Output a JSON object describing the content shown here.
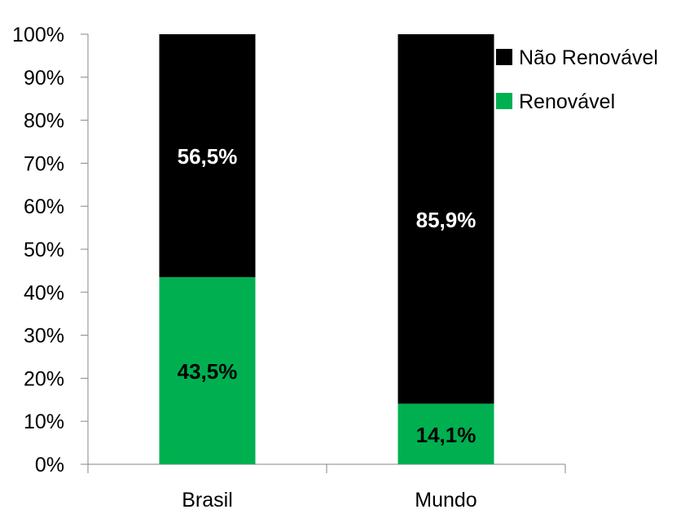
{
  "chart_data": {
    "type": "bar",
    "stacked": true,
    "title": "",
    "xlabel": "",
    "ylabel": "",
    "ylim": [
      0,
      100
    ],
    "y_ticks": [
      "0%",
      "10%",
      "20%",
      "30%",
      "40%",
      "50%",
      "60%",
      "70%",
      "80%",
      "90%",
      "100%"
    ],
    "grid": false,
    "legend_position": "top-right",
    "categories": [
      "Brasil",
      "Mundo"
    ],
    "series": [
      {
        "name": "Renovável",
        "values": [
          43.5,
          14.1
        ],
        "labels": [
          "43,5%",
          "14,1%"
        ],
        "color": "#00B050",
        "label_color": "#000000"
      },
      {
        "name": "Não Renovável",
        "values": [
          56.5,
          85.9
        ],
        "labels": [
          "56,5%",
          "85,9%"
        ],
        "color": "#000000",
        "label_color": "#FFFFFF"
      }
    ],
    "legend_order": [
      "Não Renovável",
      "Renovável"
    ]
  }
}
